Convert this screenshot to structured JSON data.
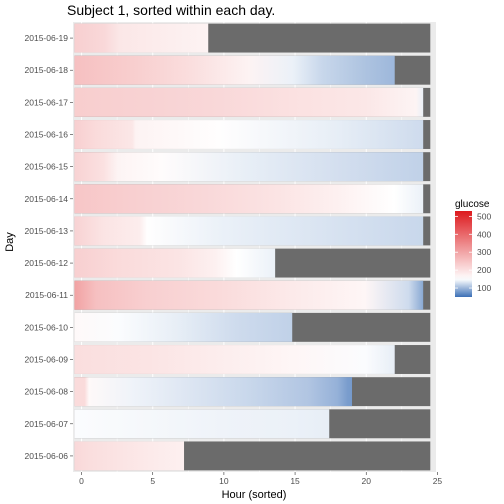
{
  "chart_data": {
    "type": "heatmap",
    "title": "Subject 1, sorted within each day.",
    "xlabel": "Hour (sorted)",
    "ylabel": "Day",
    "xlim": [
      -0.6,
      24.9
    ],
    "x_ticks": [
      0,
      5,
      10,
      15,
      20,
      25
    ],
    "grid": true,
    "days": [
      "2015-06-06",
      "2015-06-07",
      "2015-06-08",
      "2015-06-09",
      "2015-06-10",
      "2015-06-11",
      "2015-06-12",
      "2015-06-13",
      "2015-06-14",
      "2015-06-15",
      "2015-06-16",
      "2015-06-17",
      "2015-06-18",
      "2015-06-19"
    ],
    "day_hours": [
      7.2,
      17.4,
      19.0,
      22.0,
      14.8,
      24.0,
      13.6,
      24.0,
      24.0,
      24.0,
      24.0,
      24.0,
      22.0,
      8.9
    ],
    "day_profiles": [
      {
        "hours": [
          0,
          1,
          3,
          5,
          7.2
        ],
        "glucose": [
          215,
          205,
          195,
          185,
          175
        ]
      },
      {
        "hours": [
          0,
          5,
          10,
          15,
          17.4
        ],
        "glucose": [
          148,
          145,
          142,
          140,
          138
        ]
      },
      {
        "hours": [
          0,
          0.7,
          1,
          4,
          8,
          12,
          16,
          18,
          18.7,
          19
        ],
        "glucose": [
          210,
          210,
          160,
          142,
          132,
          122,
          110,
          96,
          82,
          80
        ]
      },
      {
        "hours": [
          0,
          5,
          10,
          15,
          20,
          22
        ],
        "glucose": [
          205,
          195,
          180,
          165,
          148,
          138
        ]
      },
      {
        "hours": [
          0,
          3,
          7,
          11,
          14.8
        ],
        "glucose": [
          160,
          148,
          138,
          125,
          118
        ]
      },
      {
        "hours": [
          0,
          1.5,
          5,
          10,
          15,
          20,
          23,
          24
        ],
        "glucose": [
          305,
          255,
          230,
          210,
          185,
          165,
          125,
          90
        ]
      },
      {
        "hours": [
          0,
          3,
          7,
          9.5,
          11,
          13.6
        ],
        "glucose": [
          230,
          210,
          195,
          175,
          150,
          140
        ]
      },
      {
        "hours": [
          0,
          2,
          4.5,
          5,
          10,
          24
        ],
        "glucose": [
          225,
          195,
          180,
          152,
          140,
          122
        ]
      },
      {
        "hours": [
          0,
          4,
          9,
          14,
          18,
          22,
          24
        ],
        "glucose": [
          245,
          230,
          215,
          195,
          175,
          150,
          140
        ]
      },
      {
        "hours": [
          0,
          2,
          3,
          6,
          12,
          18,
          24
        ],
        "glucose": [
          225,
          200,
          168,
          155,
          138,
          128,
          118
        ]
      },
      {
        "hours": [
          0,
          1.5,
          4,
          4.2,
          10,
          18,
          24
        ],
        "glucose": [
          230,
          210,
          190,
          170,
          152,
          138,
          125
        ]
      },
      {
        "hours": [
          0,
          5,
          10,
          15,
          20,
          23.5,
          24
        ],
        "glucose": [
          232,
          225,
          215,
          200,
          190,
          168,
          140
        ]
      },
      {
        "hours": [
          0,
          4,
          8,
          12,
          15,
          17,
          20,
          22
        ],
        "glucose": [
          255,
          232,
          205,
          170,
          140,
          122,
          108,
          100
        ]
      },
      {
        "hours": [
          0,
          2,
          3,
          8.9
        ],
        "glucose": [
          230,
          215,
          190,
          170
        ]
      }
    ],
    "legend": {
      "title": "glucose",
      "ticks": [
        100,
        200,
        300,
        400,
        500
      ],
      "range": [
        50,
        530
      ],
      "mid": 150,
      "low_color": "#3b6fb6",
      "mid_color": "#ffffff",
      "high_color": "#dd1a1e",
      "position": "right"
    },
    "missing_color": "#6b6b6b",
    "panel_color": "#ebebeb",
    "grid_color": "#ffffff"
  }
}
